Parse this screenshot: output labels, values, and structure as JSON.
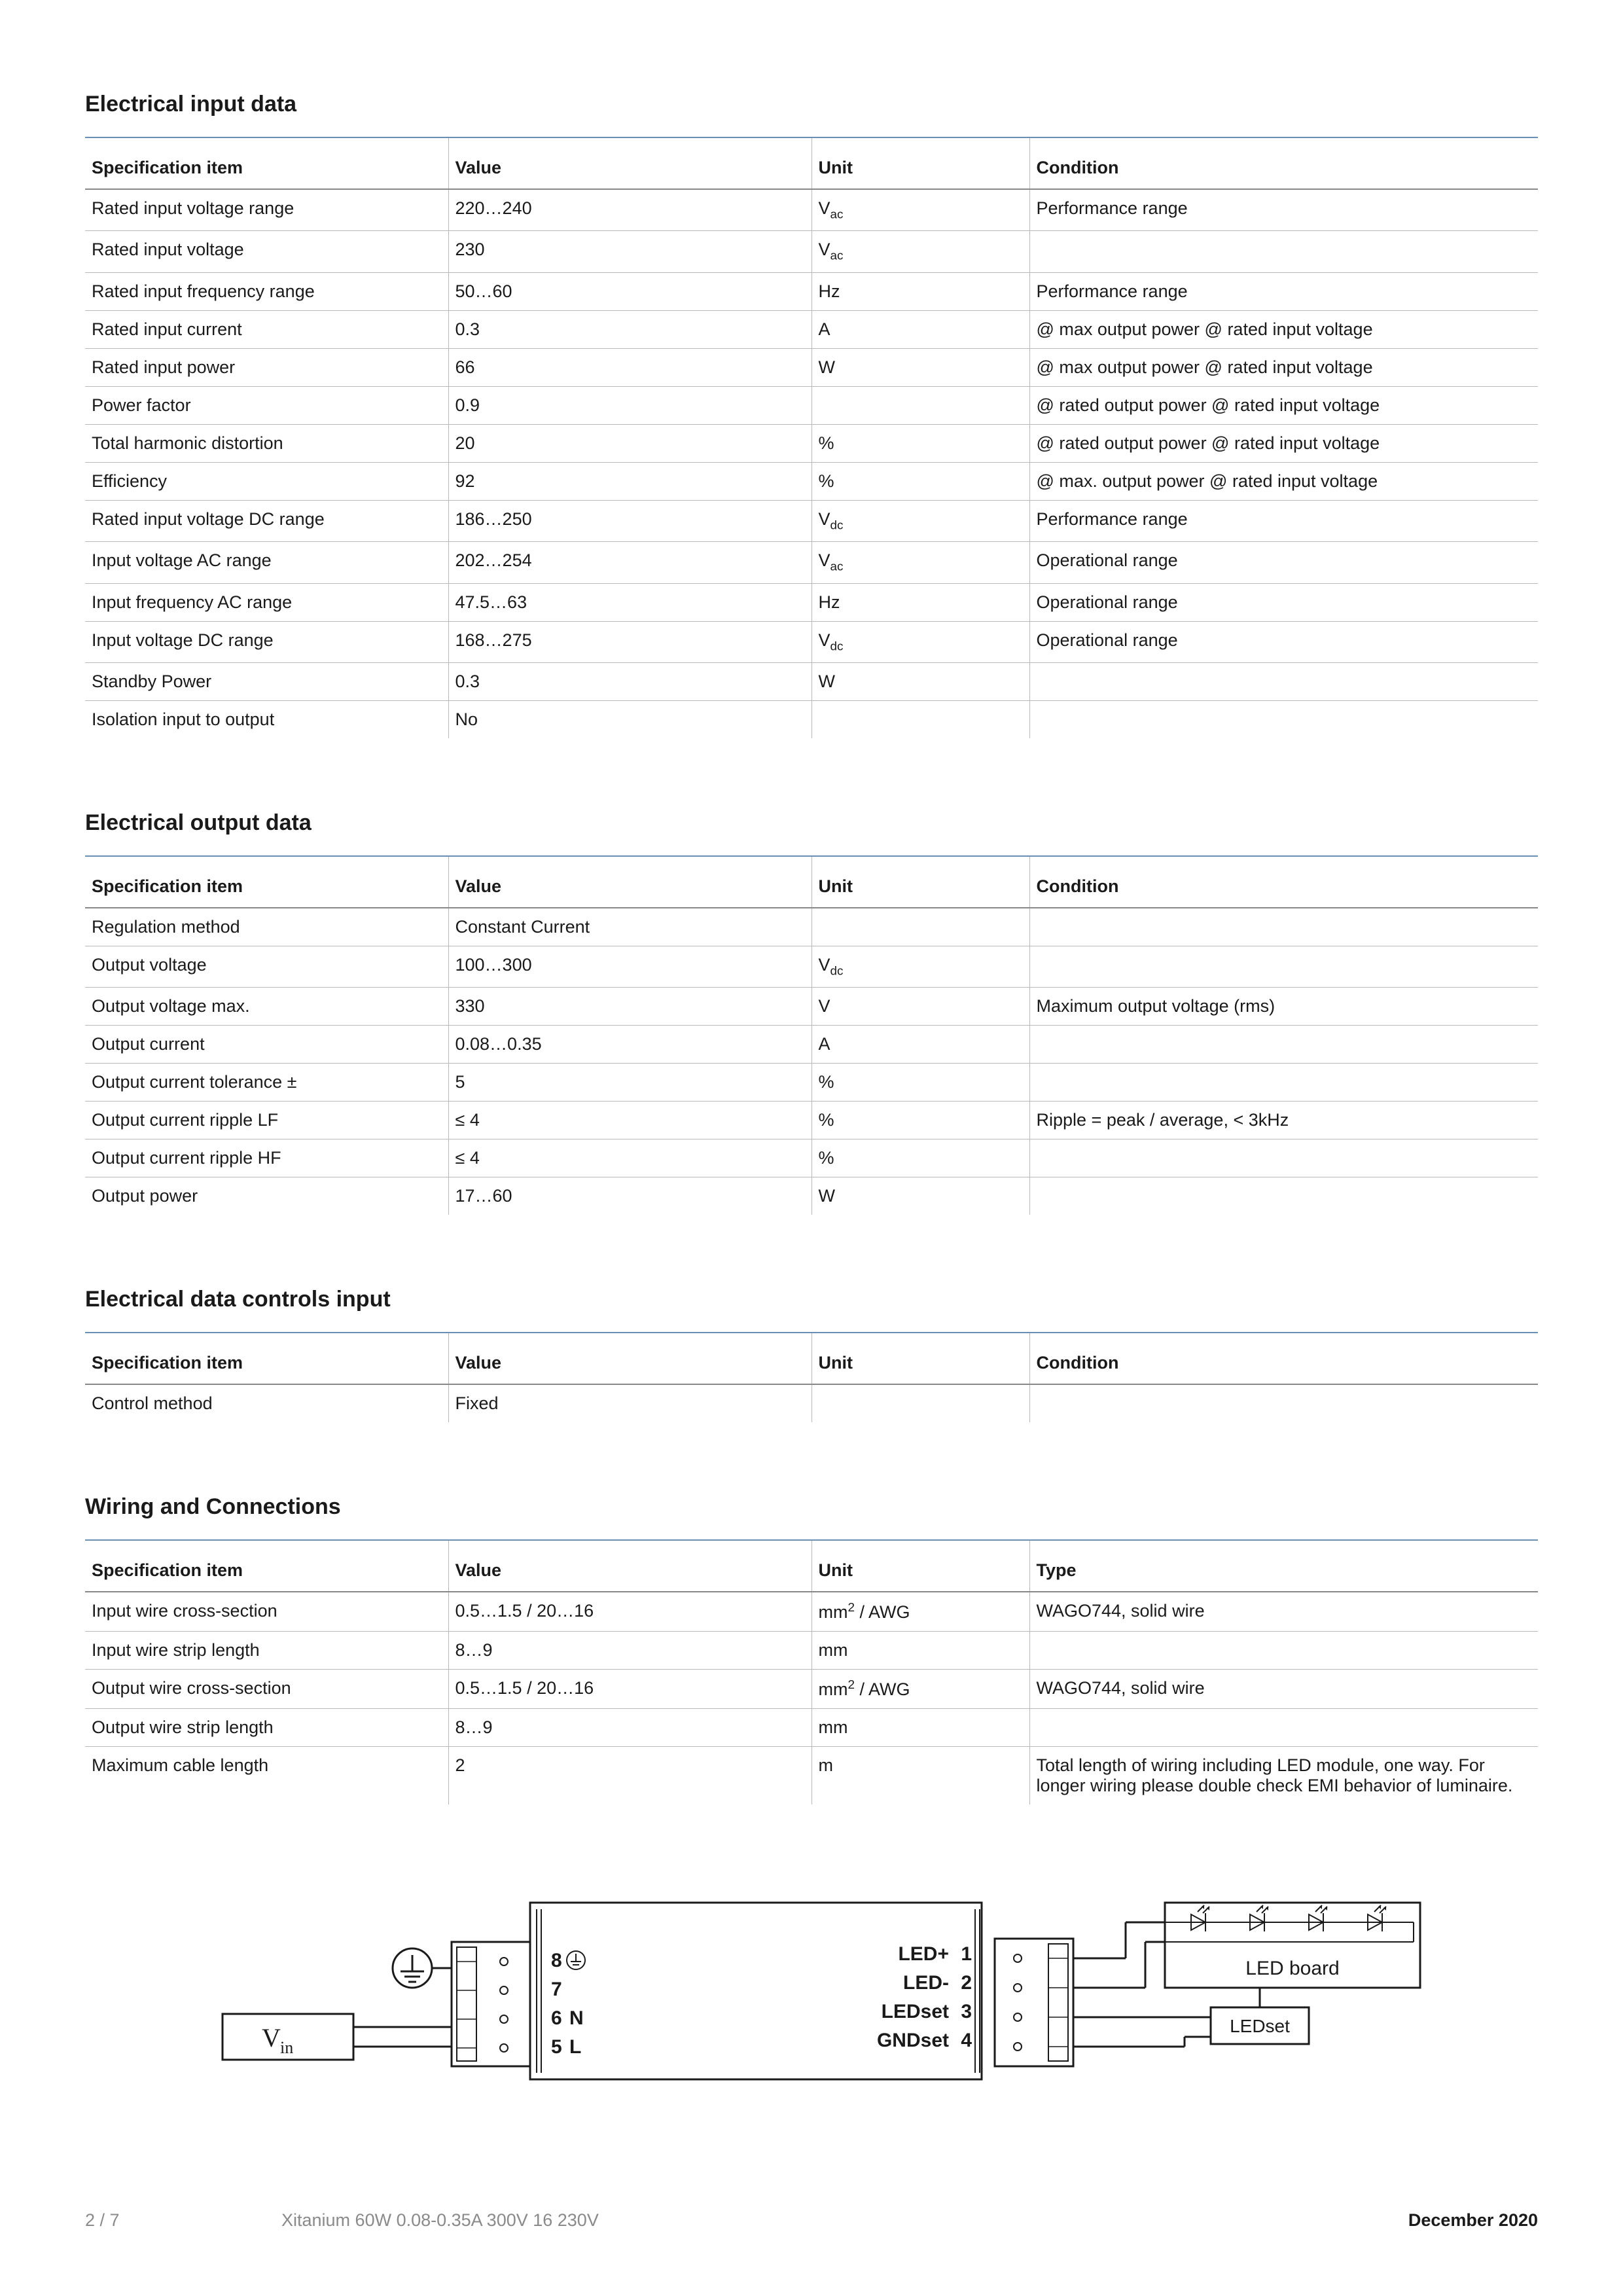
{
  "sections": [
    {
      "title": "Electrical input data",
      "columns": [
        "Specification item",
        "Value",
        "Unit",
        "Condition"
      ],
      "rows": [
        [
          "Rated input voltage range",
          "220…240",
          {
            "html": "V<sub>ac</sub>"
          },
          "Performance range"
        ],
        [
          "Rated input voltage",
          "230",
          {
            "html": "V<sub>ac</sub>"
          },
          ""
        ],
        [
          "Rated input frequency range",
          "50…60",
          "Hz",
          "Performance range"
        ],
        [
          "Rated input current",
          "0.3",
          "A",
          "@ max output power @ rated input voltage"
        ],
        [
          "Rated input power",
          "66",
          "W",
          "@ max output power @ rated input voltage"
        ],
        [
          "Power factor",
          "0.9",
          "",
          "@ rated output power @ rated input voltage"
        ],
        [
          "Total harmonic distortion",
          "20",
          "%",
          "@ rated output power @ rated input voltage"
        ],
        [
          "Efficiency",
          "92",
          "%",
          "@ max. output power @ rated input voltage"
        ],
        [
          "Rated input voltage DC range",
          "186…250",
          {
            "html": "V<sub>dc</sub>"
          },
          "Performance range"
        ],
        [
          "Input voltage AC range",
          "202…254",
          {
            "html": "V<sub>ac</sub>"
          },
          "Operational range"
        ],
        [
          "Input frequency AC range",
          "47.5…63",
          "Hz",
          "Operational range"
        ],
        [
          "Input voltage DC range",
          "168…275",
          {
            "html": "V<sub>dc</sub>"
          },
          "Operational range"
        ],
        [
          "Standby Power",
          "0.3",
          "W",
          ""
        ],
        [
          "Isolation input to output",
          "No",
          "",
          ""
        ]
      ]
    },
    {
      "title": "Electrical output data",
      "columns": [
        "Specification item",
        "Value",
        "Unit",
        "Condition"
      ],
      "rows": [
        [
          "Regulation method",
          "Constant Current",
          "",
          ""
        ],
        [
          "Output voltage",
          "100…300",
          {
            "html": "V<sub>dc</sub>"
          },
          ""
        ],
        [
          "Output voltage max.",
          "330",
          "V",
          "Maximum output voltage (rms)"
        ],
        [
          "Output current",
          "0.08…0.35",
          "A",
          ""
        ],
        [
          "Output current tolerance ±",
          "5",
          "%",
          ""
        ],
        [
          "Output current ripple LF",
          "≤ 4",
          "%",
          "Ripple = peak / average, < 3kHz"
        ],
        [
          "Output current ripple HF",
          "≤ 4",
          "%",
          ""
        ],
        [
          "Output power",
          "17…60",
          "W",
          ""
        ]
      ]
    },
    {
      "title": "Electrical data controls input",
      "columns": [
        "Specification item",
        "Value",
        "Unit",
        "Condition"
      ],
      "rows": [
        [
          "Control method",
          "Fixed",
          "",
          ""
        ]
      ]
    },
    {
      "title": "Wiring and Connections",
      "columns": [
        "Specification item",
        "Value",
        "Unit",
        "Type"
      ],
      "rows": [
        [
          "Input wire cross-section",
          "0.5…1.5 / 20…16",
          {
            "html": "mm<sup>2</sup> / AWG"
          },
          "WAGO744, solid wire"
        ],
        [
          "Input wire strip length",
          "8…9",
          "mm",
          ""
        ],
        [
          "Output wire cross-section",
          "0.5…1.5 / 20…16",
          {
            "html": "mm<sup>2</sup> / AWG"
          },
          "WAGO744, solid wire"
        ],
        [
          "Output wire strip length",
          "8…9",
          "mm",
          ""
        ],
        [
          "Maximum cable length",
          "2",
          "m",
          "Total length of wiring including LED module, one way. For longer wiring please double check EMI behavior of luminaire."
        ]
      ]
    }
  ],
  "diagram": {
    "vin_label": "V",
    "vin_sub": "in",
    "input_pins": [
      {
        "num": "8",
        "label": ""
      },
      {
        "num": "7",
        "label": ""
      },
      {
        "num": "6",
        "label": "N"
      },
      {
        "num": "5",
        "label": "L"
      }
    ],
    "output_pins": [
      {
        "label": "LED+",
        "num": "1"
      },
      {
        "label": "LED-",
        "num": "2"
      },
      {
        "label": "LEDset",
        "num": "3"
      },
      {
        "label": "GNDset",
        "num": "4"
      }
    ],
    "led_board_label": "LED board",
    "ledset_label": "LEDset"
  },
  "footer": {
    "page": "2 / 7",
    "product": "Xitanium 60W 0.08-0.35A 300V 16 230V",
    "date": "December 2020"
  },
  "style": {
    "title_rule_color": "#6a8fb5",
    "row_border_color": "#b8b8b8",
    "header_border_color": "#888888",
    "text_color": "#1a1a1a",
    "muted_color": "#8a8a8a",
    "diagram_stroke": "#1a1a1a",
    "diagram_stroke_width": 3
  }
}
